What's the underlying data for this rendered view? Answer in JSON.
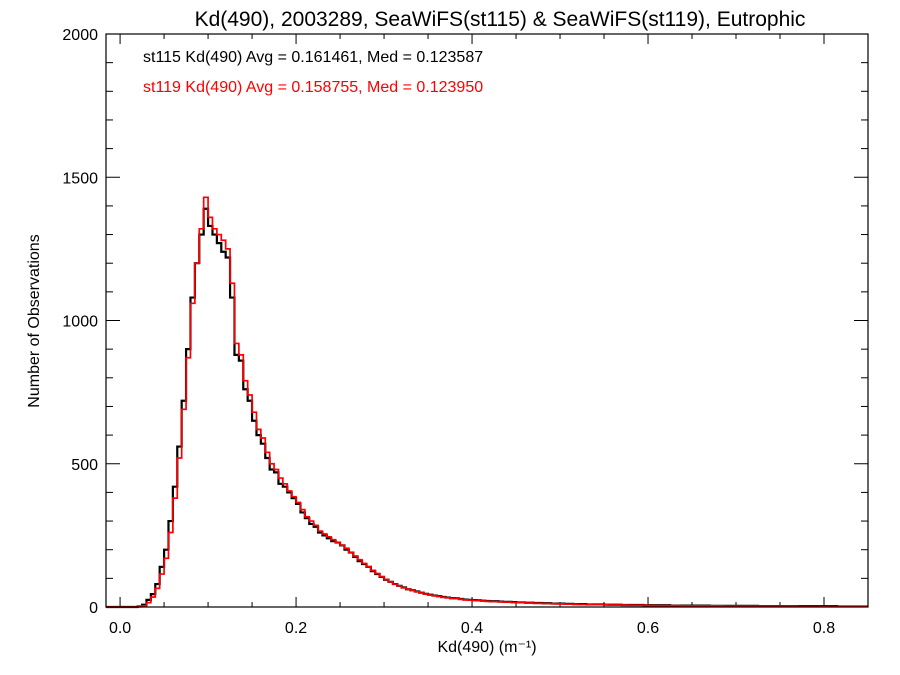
{
  "chart_data": {
    "type": "histogram-step",
    "title": "Kd(490), 2003289, SeaWiFS(st115) & SeaWiFS(st119), Eutrophic",
    "xlabel": "Kd(490) (m⁻¹)",
    "ylabel": "Number of Observations",
    "xlim": [
      -0.016,
      0.85
    ],
    "ylim": [
      0,
      2000
    ],
    "x_ticks": [
      0.0,
      0.2,
      0.4,
      0.6,
      0.8
    ],
    "x_tick_labels": [
      "0.0",
      "0.2",
      "0.4",
      "0.6",
      "0.8"
    ],
    "x_minor_step": 0.05,
    "y_ticks": [
      0,
      500,
      1000,
      1500,
      2000
    ],
    "y_tick_labels": [
      "0",
      "500",
      "1000",
      "1500",
      "2000"
    ],
    "y_minor_step": 100,
    "bin_start": 0.0,
    "bin_width": 0.005,
    "grid": false,
    "legend_placement": "top-left",
    "series": [
      {
        "name": "st115",
        "label": "st115 Kd(490) Avg = 0.161461, Med = 0.123587",
        "color": "#000000",
        "values": [
          0,
          0,
          0,
          0,
          2,
          8,
          25,
          45,
          80,
          140,
          200,
          300,
          420,
          560,
          720,
          900,
          1080,
          1200,
          1300,
          1390,
          1330,
          1300,
          1270,
          1240,
          1220,
          1080,
          880,
          860,
          760,
          720,
          650,
          600,
          570,
          520,
          480,
          470,
          430,
          420,
          400,
          380,
          360,
          330,
          310,
          290,
          280,
          260,
          250,
          240,
          230,
          225,
          215,
          200,
          190,
          175,
          160,
          150,
          140,
          125,
          115,
          105,
          95,
          88,
          80,
          74,
          68,
          62,
          58,
          54,
          50,
          46,
          43,
          40,
          38,
          35,
          33,
          31,
          30,
          28,
          26,
          25,
          24,
          23,
          22,
          21,
          20,
          20,
          19,
          18,
          18,
          17,
          16,
          16,
          15,
          15,
          14,
          14,
          13,
          13,
          12,
          12,
          12,
          11,
          11,
          10,
          10,
          10,
          9,
          9,
          9,
          9,
          8,
          8,
          8,
          8,
          7,
          7,
          7,
          7,
          7,
          6,
          6,
          6,
          6,
          6,
          6,
          5,
          5,
          5,
          5,
          5,
          5,
          5,
          5,
          5,
          4,
          4,
          4,
          4,
          4,
          4,
          4,
          4,
          4,
          4,
          4,
          3,
          3,
          3,
          3,
          3,
          3,
          3,
          3,
          3,
          3,
          3,
          3,
          3,
          3,
          3,
          3,
          3,
          3,
          2,
          2,
          2,
          2,
          2,
          2,
          2
        ]
      },
      {
        "name": "st119",
        "label": "st119 Kd(490) Avg = 0.158755, Med = 0.123950",
        "color": "#ff0000",
        "values": [
          0,
          0,
          0,
          0,
          1,
          4,
          15,
          35,
          65,
          115,
          170,
          260,
          380,
          520,
          690,
          870,
          1060,
          1200,
          1320,
          1430,
          1360,
          1320,
          1300,
          1280,
          1250,
          1130,
          920,
          880,
          790,
          740,
          680,
          620,
          590,
          540,
          500,
          480,
          450,
          430,
          405,
          385,
          365,
          340,
          315,
          300,
          285,
          265,
          255,
          245,
          235,
          225,
          215,
          205,
          190,
          178,
          165,
          152,
          140,
          128,
          117,
          106,
          96,
          88,
          80,
          74,
          67,
          62,
          57,
          53,
          49,
          45,
          42,
          39,
          37,
          34,
          32,
          30,
          29,
          27,
          25,
          24,
          23,
          22,
          21,
          20,
          19,
          19,
          18,
          17,
          17,
          16,
          15,
          15,
          14,
          14,
          13,
          13,
          12,
          12,
          12,
          11,
          11,
          10,
          10,
          10,
          9,
          9,
          9,
          8,
          8,
          8,
          8,
          7,
          7,
          7,
          7,
          6,
          6,
          6,
          6,
          6,
          5,
          5,
          5,
          5,
          5,
          5,
          5,
          4,
          4,
          4,
          4,
          4,
          4,
          4,
          4,
          4,
          4,
          3,
          3,
          3,
          3,
          3,
          3,
          3,
          3,
          3,
          3,
          3,
          3,
          3,
          3,
          3,
          3,
          3,
          2,
          2,
          2,
          2,
          2,
          2,
          2,
          2,
          2,
          2,
          2,
          2,
          2,
          2,
          2,
          2
        ]
      }
    ]
  }
}
